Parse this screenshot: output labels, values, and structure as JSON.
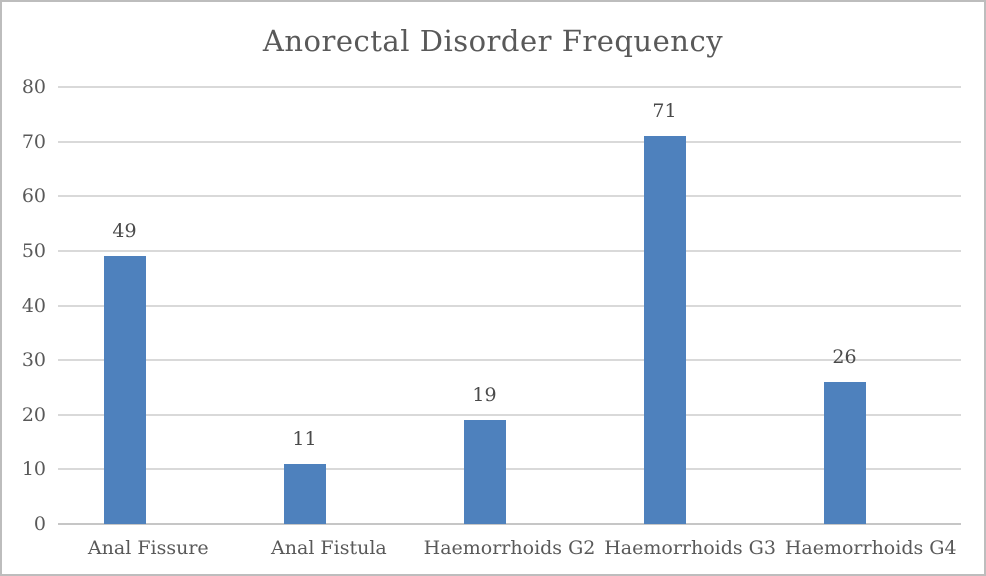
{
  "chart_data": {
    "type": "bar",
    "title": "Anorectal Disorder Frequency",
    "categories": [
      "Anal Fissure",
      "Anal Fistula",
      "Haemorrhoids G2",
      "Haemorrhoids G3",
      "Haemorrhoids G4"
    ],
    "values": [
      49,
      11,
      19,
      71,
      26
    ],
    "xlabel": "",
    "ylabel": "",
    "ylim": [
      0,
      80
    ],
    "yticks": [
      0,
      10,
      20,
      30,
      40,
      50,
      60,
      70,
      80
    ],
    "grid": true,
    "legend_position": "none",
    "data_labels": true,
    "colors": {
      "bar": "#4E81BD",
      "gridline": "#D9D9D9",
      "baseline": "#C6C6C6",
      "axis_text": "#595959",
      "value_text": "#4A4A4A",
      "title_text": "#595959",
      "border": "#BDBDBD",
      "background": "#FFFFFF"
    }
  }
}
